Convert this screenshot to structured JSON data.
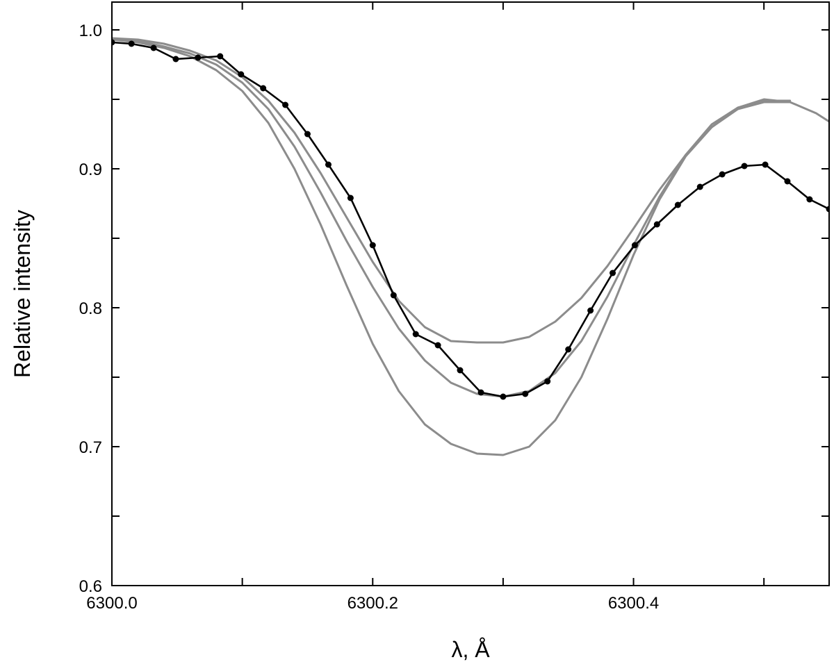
{
  "chart_data": {
    "type": "line",
    "title": "",
    "xlabel": "λ, Å",
    "ylabel": "Relative intensity",
    "xlim": [
      6300.0,
      6300.55
    ],
    "ylim": [
      0.6,
      1.02
    ],
    "x_ticks": [
      6300.0,
      6300.2,
      6300.4
    ],
    "x_tick_labels": [
      "6300.0",
      "6300.2",
      "6300.4"
    ],
    "x_minor_ticks": [
      6300.1,
      6300.3,
      6300.5
    ],
    "y_ticks": [
      0.6,
      0.7,
      0.8,
      0.9,
      1.0
    ],
    "y_tick_labels": [
      "0.6",
      "0.7",
      "0.8",
      "0.9",
      "1.0"
    ],
    "y_minor_ticks": [
      0.65,
      0.75,
      0.85,
      0.95
    ],
    "grid": false,
    "legend": "none",
    "colors": {
      "observed": "#000000",
      "model": "#8c8c8c"
    },
    "series": [
      {
        "style": "observed",
        "markers": true,
        "x": [
          6300.0,
          6300.015,
          6300.032,
          6300.049,
          6300.066,
          6300.083,
          6300.099,
          6300.116,
          6300.133,
          6300.15,
          6300.166,
          6300.183,
          6300.2,
          6300.216,
          6300.233,
          6300.25,
          6300.267,
          6300.283,
          6300.3,
          6300.317,
          6300.334,
          6300.35,
          6300.367,
          6300.384,
          6300.401,
          6300.418,
          6300.434,
          6300.451,
          6300.468,
          6300.485,
          6300.501,
          6300.518,
          6300.535,
          6300.55
        ],
        "y": [
          0.991,
          0.99,
          0.987,
          0.979,
          0.98,
          0.981,
          0.968,
          0.958,
          0.946,
          0.925,
          0.903,
          0.879,
          0.845,
          0.809,
          0.781,
          0.773,
          0.755,
          0.739,
          0.736,
          0.738,
          0.747,
          0.77,
          0.798,
          0.825,
          0.845,
          0.86,
          0.874,
          0.887,
          0.896,
          0.902,
          0.903,
          0.891,
          0.878,
          0.871
        ]
      },
      {
        "style": "model",
        "markers": false,
        "x": [
          6300.0,
          6300.02,
          6300.04,
          6300.06,
          6300.08,
          6300.1,
          6300.12,
          6300.14,
          6300.16,
          6300.18,
          6300.2,
          6300.22,
          6300.24,
          6300.26,
          6300.28,
          6300.3,
          6300.32,
          6300.34,
          6300.36,
          6300.38,
          6300.4,
          6300.42,
          6300.44,
          6300.46,
          6300.48,
          6300.5,
          6300.52,
          6300.54,
          6300.55
        ],
        "y": [
          0.994,
          0.993,
          0.99,
          0.985,
          0.978,
          0.966,
          0.949,
          0.926,
          0.897,
          0.865,
          0.833,
          0.805,
          0.786,
          0.776,
          0.775,
          0.775,
          0.779,
          0.79,
          0.807,
          0.83,
          0.857,
          0.885,
          0.91,
          0.93,
          0.944,
          0.95,
          0.948,
          0.94,
          0.934
        ]
      },
      {
        "style": "model",
        "markers": false,
        "x": [
          6300.0,
          6300.02,
          6300.04,
          6300.06,
          6300.08,
          6300.1,
          6300.12,
          6300.14,
          6300.16,
          6300.18,
          6300.2,
          6300.22,
          6300.24,
          6300.26,
          6300.28,
          6300.3,
          6300.32,
          6300.34,
          6300.36,
          6300.38,
          6300.4,
          6300.42,
          6300.44,
          6300.46,
          6300.48,
          6300.5,
          6300.52
        ],
        "y": [
          0.993,
          0.992,
          0.988,
          0.983,
          0.975,
          0.962,
          0.943,
          0.916,
          0.883,
          0.848,
          0.815,
          0.785,
          0.762,
          0.746,
          0.738,
          0.736,
          0.74,
          0.753,
          0.776,
          0.808,
          0.845,
          0.88,
          0.91,
          0.932,
          0.944,
          0.949,
          0.949
        ]
      },
      {
        "style": "model",
        "markers": false,
        "x": [
          6300.0,
          6300.02,
          6300.04,
          6300.06,
          6300.08,
          6300.1,
          6300.12,
          6300.14,
          6300.16,
          6300.18,
          6300.2,
          6300.22,
          6300.24,
          6300.26,
          6300.28,
          6300.3,
          6300.32,
          6300.34,
          6300.36,
          6300.38,
          6300.4,
          6300.42,
          6300.44,
          6300.46,
          6300.48,
          6300.5,
          6300.52
        ],
        "y": [
          0.993,
          0.991,
          0.987,
          0.981,
          0.971,
          0.956,
          0.933,
          0.9,
          0.86,
          0.816,
          0.774,
          0.74,
          0.716,
          0.702,
          0.695,
          0.694,
          0.7,
          0.719,
          0.75,
          0.792,
          0.838,
          0.878,
          0.909,
          0.93,
          0.943,
          0.948,
          0.948
        ]
      }
    ]
  }
}
